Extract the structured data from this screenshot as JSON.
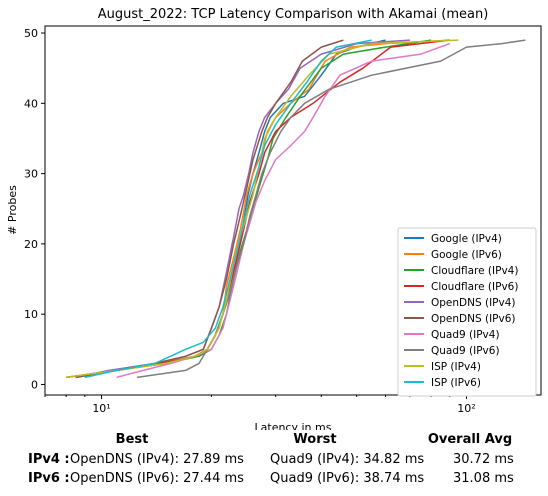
{
  "chart_data": {
    "type": "line",
    "title": "August_2022: TCP Latency Comparison with Akamai (mean)",
    "xlabel": "Latency in ms",
    "ylabel": "# Probes",
    "xscale": "log",
    "xlim": [
      7,
      160
    ],
    "ylim": [
      -1.5,
      51
    ],
    "xticks": [
      10,
      100
    ],
    "xtick_labels": [
      "10¹",
      "10²"
    ],
    "yticks": [
      0,
      10,
      20,
      30,
      40,
      50
    ],
    "grid": false,
    "legend": "lower-right",
    "series": [
      {
        "name": "Google (IPv4)",
        "color": "#1f77b4",
        "points": [
          [
            8.5,
            1
          ],
          [
            10.5,
            2
          ],
          [
            15,
            3
          ],
          [
            18,
            4
          ],
          [
            19.5,
            5
          ],
          [
            20.5,
            7
          ],
          [
            21.5,
            10
          ],
          [
            22.5,
            14
          ],
          [
            23.5,
            18
          ],
          [
            24.3,
            22
          ],
          [
            25.2,
            27
          ],
          [
            26,
            30
          ],
          [
            27,
            33
          ],
          [
            28,
            36
          ],
          [
            29,
            38
          ],
          [
            31.5,
            40
          ],
          [
            36,
            41
          ],
          [
            40,
            44
          ],
          [
            44,
            47
          ],
          [
            50,
            48
          ],
          [
            60,
            49
          ]
        ]
      },
      {
        "name": "Google (IPv6)",
        "color": "#ff7f0e",
        "points": [
          [
            8,
            1
          ],
          [
            11,
            2
          ],
          [
            15,
            3
          ],
          [
            18,
            4
          ],
          [
            19.5,
            5
          ],
          [
            20.5,
            7
          ],
          [
            21.5,
            10
          ],
          [
            22,
            14
          ],
          [
            23,
            18
          ],
          [
            24,
            22
          ],
          [
            25,
            27
          ],
          [
            26,
            30
          ],
          [
            27.5,
            33
          ],
          [
            28.5,
            36
          ],
          [
            30,
            38
          ],
          [
            33,
            40
          ],
          [
            37,
            42
          ],
          [
            41,
            46
          ],
          [
            48,
            48
          ],
          [
            60,
            48.5
          ],
          [
            90,
            49
          ]
        ]
      },
      {
        "name": "Cloudflare (IPv4)",
        "color": "#2ca02c",
        "points": [
          [
            8.5,
            1
          ],
          [
            11,
            2
          ],
          [
            15,
            3
          ],
          [
            18.5,
            4
          ],
          [
            20,
            5
          ],
          [
            21,
            7
          ],
          [
            22,
            10
          ],
          [
            23,
            15
          ],
          [
            24,
            19
          ],
          [
            25,
            22
          ],
          [
            26,
            25
          ],
          [
            27,
            28
          ],
          [
            28.5,
            32
          ],
          [
            29.5,
            35
          ],
          [
            32,
            38
          ],
          [
            35,
            41
          ],
          [
            40,
            45
          ],
          [
            46,
            47
          ],
          [
            60,
            48
          ],
          [
            80,
            49
          ]
        ]
      },
      {
        "name": "Cloudflare (IPv6)",
        "color": "#d62728",
        "points": [
          [
            8,
            1
          ],
          [
            11,
            2
          ],
          [
            14.5,
            3
          ],
          [
            18,
            4
          ],
          [
            19.5,
            5
          ],
          [
            20.5,
            7
          ],
          [
            21.5,
            10
          ],
          [
            22.5,
            14
          ],
          [
            23.5,
            18
          ],
          [
            24.5,
            22
          ],
          [
            25.5,
            26
          ],
          [
            27,
            30
          ],
          [
            28,
            33
          ],
          [
            30,
            36
          ],
          [
            33,
            38
          ],
          [
            38,
            40
          ],
          [
            45,
            43
          ],
          [
            52,
            45
          ],
          [
            62,
            48
          ],
          [
            90,
            49
          ]
        ]
      },
      {
        "name": "OpenDNS (IPv4)",
        "color": "#9467bd",
        "points": [
          [
            8.5,
            1
          ],
          [
            10.5,
            2
          ],
          [
            14,
            3
          ],
          [
            17,
            4
          ],
          [
            19,
            5
          ],
          [
            20,
            8
          ],
          [
            21,
            11
          ],
          [
            22,
            16
          ],
          [
            23,
            21
          ],
          [
            23.8,
            25
          ],
          [
            24.5,
            27
          ],
          [
            25.3,
            30
          ],
          [
            26,
            33
          ],
          [
            27,
            36
          ],
          [
            28,
            38
          ],
          [
            30,
            40
          ],
          [
            32.5,
            42
          ],
          [
            35,
            45
          ],
          [
            40,
            47
          ],
          [
            50,
            48.5
          ],
          [
            70,
            49
          ]
        ]
      },
      {
        "name": "OpenDNS (IPv6)",
        "color": "#8c564b",
        "points": [
          [
            8.5,
            1
          ],
          [
            11,
            2
          ],
          [
            14,
            3
          ],
          [
            17,
            4
          ],
          [
            19,
            5
          ],
          [
            20,
            8
          ],
          [
            21,
            11
          ],
          [
            22,
            15
          ],
          [
            23,
            20
          ],
          [
            24,
            24
          ],
          [
            25,
            28
          ],
          [
            26,
            32
          ],
          [
            27.5,
            36
          ],
          [
            28.5,
            38
          ],
          [
            30,
            40
          ],
          [
            33,
            43
          ],
          [
            35.5,
            46
          ],
          [
            40,
            48
          ],
          [
            46,
            49
          ]
        ]
      },
      {
        "name": "Quad9 (IPv4)",
        "color": "#e377c2",
        "points": [
          [
            11,
            1
          ],
          [
            13,
            2
          ],
          [
            15.5,
            3
          ],
          [
            18,
            4
          ],
          [
            20,
            5
          ],
          [
            21.5,
            8
          ],
          [
            22.5,
            12
          ],
          [
            23.5,
            16
          ],
          [
            24.5,
            20
          ],
          [
            25.5,
            23
          ],
          [
            26.5,
            26
          ],
          [
            28,
            29
          ],
          [
            30,
            32
          ],
          [
            33,
            34
          ],
          [
            36,
            36
          ],
          [
            38,
            38
          ],
          [
            41,
            41
          ],
          [
            45,
            44
          ],
          [
            55,
            46
          ],
          [
            75,
            47
          ],
          [
            90,
            48.5
          ]
        ]
      },
      {
        "name": "Quad9 (IPv6)",
        "color": "#7f7f7f",
        "points": [
          [
            12.5,
            1
          ],
          [
            17,
            2
          ],
          [
            18.5,
            3
          ],
          [
            19.5,
            5
          ],
          [
            20.5,
            7
          ],
          [
            21.5,
            10
          ],
          [
            22.5,
            13
          ],
          [
            23.5,
            17
          ],
          [
            24.5,
            20
          ],
          [
            25.5,
            24
          ],
          [
            26.5,
            27
          ],
          [
            27.5,
            30
          ],
          [
            29,
            33
          ],
          [
            31,
            36
          ],
          [
            33,
            38
          ],
          [
            36,
            40
          ],
          [
            42,
            42
          ],
          [
            55,
            44
          ],
          [
            85,
            46
          ],
          [
            100,
            48
          ],
          [
            125,
            48.5
          ],
          [
            145,
            49
          ]
        ]
      },
      {
        "name": "ISP (IPv4)",
        "color": "#bcbd22",
        "points": [
          [
            8,
            1
          ],
          [
            11,
            2
          ],
          [
            15,
            3
          ],
          [
            18,
            4
          ],
          [
            19.5,
            5
          ],
          [
            21,
            8
          ],
          [
            22,
            12
          ],
          [
            23,
            17
          ],
          [
            24,
            21
          ],
          [
            25,
            24
          ],
          [
            26,
            27
          ],
          [
            27,
            31
          ],
          [
            28,
            35
          ],
          [
            30,
            38
          ],
          [
            33,
            41
          ],
          [
            37,
            44
          ],
          [
            42,
            47
          ],
          [
            55,
            48.5
          ],
          [
            95,
            49
          ]
        ]
      },
      {
        "name": "ISP (IPv6)",
        "color": "#17becf",
        "points": [
          [
            9,
            1
          ],
          [
            11,
            2
          ],
          [
            14,
            3
          ],
          [
            17,
            5
          ],
          [
            19,
            6
          ],
          [
            20.5,
            8
          ],
          [
            21.5,
            11
          ],
          [
            22.5,
            15
          ],
          [
            23.5,
            19
          ],
          [
            24.5,
            23
          ],
          [
            25.5,
            27
          ],
          [
            27,
            31
          ],
          [
            28,
            34
          ],
          [
            30,
            37
          ],
          [
            33,
            40
          ],
          [
            36.5,
            43
          ],
          [
            40,
            46
          ],
          [
            44,
            48
          ],
          [
            55,
            49
          ]
        ]
      }
    ]
  },
  "summary": {
    "headers": {
      "best": "Best",
      "worst": "Worst",
      "avg": "Overall Avg"
    },
    "rows": [
      {
        "label": "IPv4 :",
        "best": "OpenDNS (IPv4): 27.89 ms",
        "worst": "Quad9 (IPv4): 34.82 ms",
        "avg": "30.72 ms"
      },
      {
        "label": "IPv6 :",
        "best": "OpenDNS (IPv6): 27.44 ms",
        "worst": "Quad9 (IPv6): 38.74 ms",
        "avg": "31.08 ms"
      }
    ]
  }
}
